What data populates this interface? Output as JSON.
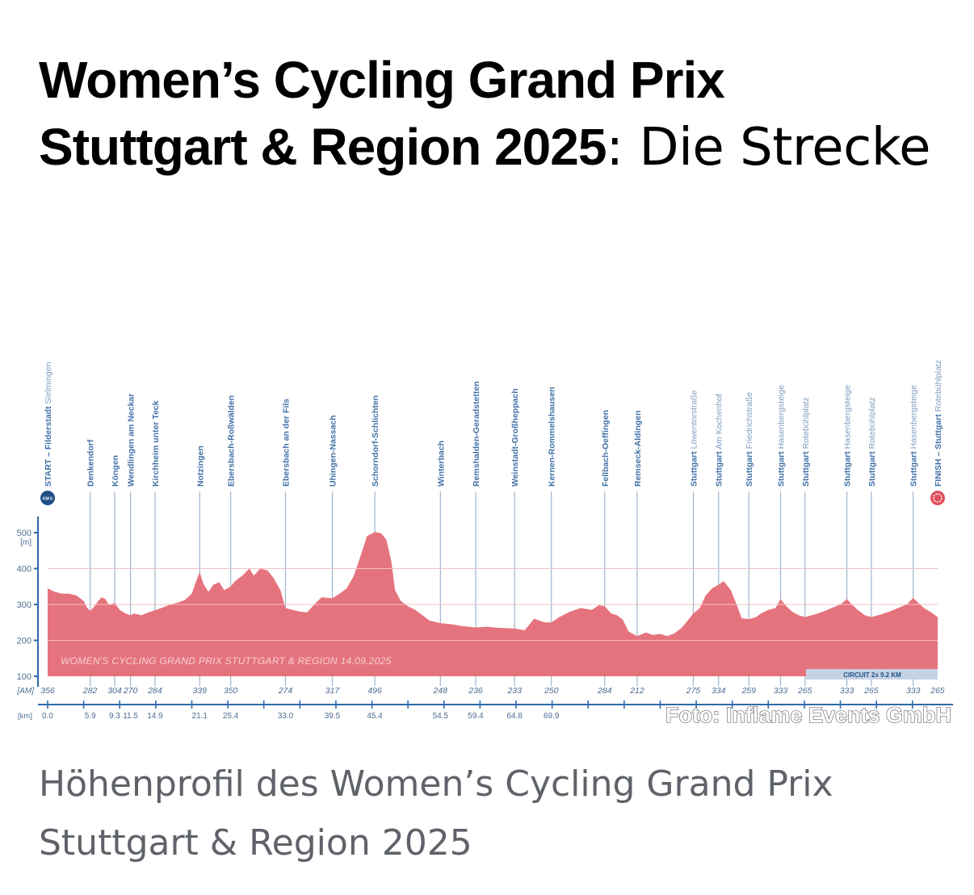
{
  "article": {
    "title_bold": "Women’s Cycling Grand Prix Stuttgart & Region 2025",
    "title_rest": ": Die Strecke",
    "caption": "Höhenprofil des Women’s Cycling Grand Prix Stuttgart & Region 2025",
    "photo_credit": "Foto: Inflame Events GmbH"
  },
  "chart_data": {
    "type": "area",
    "title": "",
    "watermark": "WOMEN'S CYCLING GRAND PRIX STUTTGART & REGION  14.09.2025",
    "circuit_label": "CIRCUIT  2x 9.2 KM",
    "ylabel": "[m]",
    "row_label_altitude": "[AM]",
    "row_label_km": "[km]",
    "ylim": [
      100,
      500
    ],
    "yticks": [
      "100",
      "200",
      "300",
      "400",
      "500"
    ],
    "xlim": [
      0,
      120
    ],
    "start_badge": "KM 0",
    "waypoints": [
      {
        "name": "START – Filderstadt",
        "sub": "Sielmingen",
        "km": "0.0",
        "x": 0.0,
        "alt": "356"
      },
      {
        "name": "Denkendorf",
        "sub": "",
        "km": "5.9",
        "x": 5.9,
        "alt": "282"
      },
      {
        "name": "Köngen",
        "sub": "",
        "km": "9.3",
        "x": 9.3,
        "alt": "304"
      },
      {
        "name": "Wendlingen am Neckar",
        "sub": "",
        "km": "11.5",
        "x": 11.5,
        "alt": "270"
      },
      {
        "name": "Kirchheim unter Teck",
        "sub": "",
        "km": "14.9",
        "x": 14.9,
        "alt": "284"
      },
      {
        "name": "Notzingen",
        "sub": "",
        "km": "21.1",
        "x": 21.1,
        "alt": "339"
      },
      {
        "name": "Ebersbach-Roßwälden",
        "sub": "",
        "km": "25.4",
        "x": 25.4,
        "alt": "350"
      },
      {
        "name": "Ebersbach an der Fils",
        "sub": "",
        "km": "33.0",
        "x": 33.0,
        "alt": "274"
      },
      {
        "name": "Uhingen-Nassach",
        "sub": "",
        "km": "39.5",
        "x": 39.5,
        "alt": "317"
      },
      {
        "name": "Schorndorf-Schlichten",
        "sub": "",
        "km": "45.4",
        "x": 45.4,
        "alt": "496"
      },
      {
        "name": "Winterbach",
        "sub": "",
        "km": "54.5",
        "x": 54.5,
        "alt": "248"
      },
      {
        "name": "Remshalden-Geradstetten",
        "sub": "",
        "km": "59.4",
        "x": 59.4,
        "alt": "236"
      },
      {
        "name": "Weinstadt-Großheppach",
        "sub": "",
        "km": "64.8",
        "x": 64.8,
        "alt": "233"
      },
      {
        "name": "Kernen-Rommelshausen",
        "sub": "",
        "km": "69.9",
        "x": 69.9,
        "alt": "250"
      },
      {
        "name": "Fellbach-Oeffingen",
        "sub": "",
        "km": "",
        "x": 77.3,
        "alt": "284"
      },
      {
        "name": "Remseck-Aldingen",
        "sub": "",
        "km": "",
        "x": 81.8,
        "alt": "212"
      },
      {
        "name": "Stuttgart",
        "sub": "Löwentorstraße",
        "km": "",
        "x": 89.6,
        "alt": "275"
      },
      {
        "name": "Stuttgart",
        "sub": "Am Kochenhof",
        "km": "",
        "x": 93.1,
        "alt": "334"
      },
      {
        "name": "Stuttgart",
        "sub": "Friedrichstraße",
        "km": "",
        "x": 97.3,
        "alt": "259"
      },
      {
        "name": "Stuttgart",
        "sub": "Hasenbergsteige",
        "km": "",
        "x": 101.7,
        "alt": "333"
      },
      {
        "name": "Stuttgart",
        "sub": "Rotebühlplatz",
        "km": "",
        "x": 105.1,
        "alt": "265"
      },
      {
        "name": "Stuttgart",
        "sub": "Hasenbergsteige",
        "km": "",
        "x": 110.9,
        "alt": "333"
      },
      {
        "name": "Stuttgart",
        "sub": "Rotebühlplatz",
        "km": "",
        "x": 114.3,
        "alt": "265"
      },
      {
        "name": "Stuttgart",
        "sub": "Hasenbergsteige",
        "km": "",
        "x": 120.1,
        "alt": "333"
      },
      {
        "name": "FINISH – Stuttgart",
        "sub": "Rotebühlplatz",
        "km": "",
        "x": 123.5,
        "alt": "265"
      }
    ],
    "profile": [
      [
        0,
        345
      ],
      [
        0.5,
        340
      ],
      [
        1,
        335
      ],
      [
        2,
        330
      ],
      [
        3,
        330
      ],
      [
        4,
        325
      ],
      [
        5,
        310
      ],
      [
        5.5,
        290
      ],
      [
        5.9,
        282
      ],
      [
        6.5,
        295
      ],
      [
        7,
        310
      ],
      [
        7.5,
        320
      ],
      [
        8,
        315
      ],
      [
        8.5,
        300
      ],
      [
        9.3,
        304
      ],
      [
        10,
        285
      ],
      [
        10.8,
        275
      ],
      [
        11.5,
        270
      ],
      [
        12,
        275
      ],
      [
        13,
        270
      ],
      [
        14,
        278
      ],
      [
        14.9,
        284
      ],
      [
        16,
        292
      ],
      [
        17,
        300
      ],
      [
        18,
        305
      ],
      [
        19,
        312
      ],
      [
        20,
        330
      ],
      [
        20.6,
        365
      ],
      [
        21.1,
        390
      ],
      [
        21.6,
        358
      ],
      [
        22.3,
        335
      ],
      [
        23,
        355
      ],
      [
        23.8,
        362
      ],
      [
        24.5,
        340
      ],
      [
        25.4,
        350
      ],
      [
        26,
        365
      ],
      [
        27,
        380
      ],
      [
        28,
        400
      ],
      [
        28.6,
        380
      ],
      [
        29.5,
        400
      ],
      [
        30.5,
        395
      ],
      [
        31.3,
        375
      ],
      [
        32.3,
        340
      ],
      [
        33,
        290
      ],
      [
        34,
        285
      ],
      [
        35,
        280
      ],
      [
        36,
        278
      ],
      [
        37,
        300
      ],
      [
        38,
        320
      ],
      [
        39.5,
        317
      ],
      [
        40.5,
        330
      ],
      [
        41.5,
        345
      ],
      [
        42.5,
        380
      ],
      [
        43.5,
        440
      ],
      [
        44.3,
        490
      ],
      [
        45.4,
        502
      ],
      [
        46.3,
        498
      ],
      [
        47,
        480
      ],
      [
        47.7,
        420
      ],
      [
        48.2,
        340
      ],
      [
        49,
        310
      ],
      [
        50,
        295
      ],
      [
        51,
        285
      ],
      [
        52,
        270
      ],
      [
        53,
        255
      ],
      [
        54.5,
        248
      ],
      [
        56,
        245
      ],
      [
        57.5,
        240
      ],
      [
        59.4,
        236
      ],
      [
        61,
        238
      ],
      [
        62.5,
        235
      ],
      [
        64.8,
        233
      ],
      [
        66.2,
        228
      ],
      [
        67.5,
        260
      ],
      [
        69,
        250
      ],
      [
        69.9,
        250
      ],
      [
        71,
        265
      ],
      [
        72.5,
        280
      ],
      [
        74,
        290
      ],
      [
        75.5,
        285
      ],
      [
        76.5,
        298
      ],
      [
        77.3,
        295
      ],
      [
        78.2,
        275
      ],
      [
        79,
        270
      ],
      [
        79.8,
        258
      ],
      [
        80.6,
        225
      ],
      [
        81.8,
        212
      ],
      [
        83,
        222
      ],
      [
        84,
        215
      ],
      [
        85,
        218
      ],
      [
        86,
        212
      ],
      [
        87,
        220
      ],
      [
        88,
        235
      ],
      [
        88.8,
        255
      ],
      [
        89.6,
        275
      ],
      [
        90.5,
        290
      ],
      [
        91.3,
        325
      ],
      [
        92.2,
        345
      ],
      [
        93.1,
        355
      ],
      [
        93.8,
        365
      ],
      [
        94.8,
        340
      ],
      [
        95.7,
        295
      ],
      [
        96.3,
        262
      ],
      [
        97.3,
        259
      ],
      [
        98.3,
        265
      ],
      [
        99,
        275
      ],
      [
        100,
        285
      ],
      [
        101,
        290
      ],
      [
        101.7,
        315
      ],
      [
        102.5,
        295
      ],
      [
        103.3,
        280
      ],
      [
        104.2,
        270
      ],
      [
        105.1,
        265
      ],
      [
        106.4,
        272
      ],
      [
        107.6,
        280
      ],
      [
        108.8,
        290
      ],
      [
        110,
        300
      ],
      [
        110.9,
        315
      ],
      [
        111.6,
        300
      ],
      [
        112.4,
        285
      ],
      [
        113.4,
        270
      ],
      [
        114.3,
        265
      ],
      [
        115.6,
        272
      ],
      [
        116.8,
        280
      ],
      [
        118,
        290
      ],
      [
        119.2,
        300
      ],
      [
        120.1,
        318
      ],
      [
        120.8,
        305
      ],
      [
        121.6,
        290
      ],
      [
        122.6,
        278
      ],
      [
        123.5,
        265
      ]
    ]
  }
}
